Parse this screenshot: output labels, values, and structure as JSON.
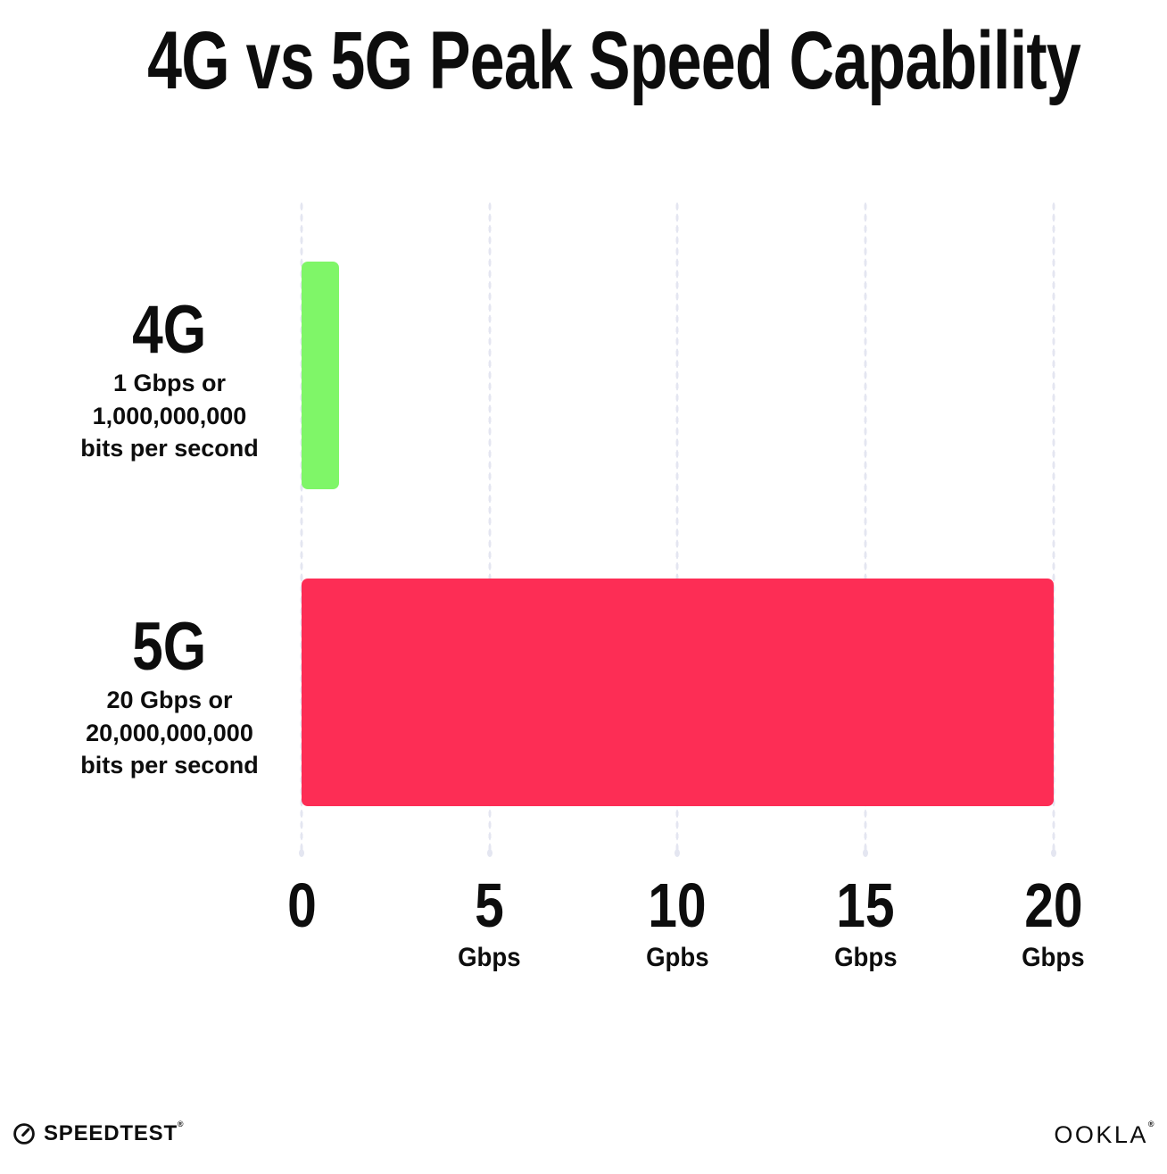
{
  "title": "4G vs 5G Peak Speed Capability",
  "colors": {
    "bar_4g": "#7FF668",
    "bar_5g": "#FD2D55",
    "grid_dots": "#E4E6F1",
    "text": "#0D0D0D",
    "background": "#FFFFFF"
  },
  "chart_data": {
    "type": "bar",
    "orientation": "horizontal",
    "title": "4G vs 5G Peak Speed Capability",
    "categories": [
      "4G",
      "5G"
    ],
    "values": [
      1,
      20
    ],
    "value_unit": "Gbps",
    "xlim": [
      0,
      20
    ],
    "grid": "vertical dotted gridlines at each tick",
    "legend_position": "none",
    "x_ticks": [
      {
        "value": 0,
        "label": "0",
        "unit": ""
      },
      {
        "value": 5,
        "label": "5",
        "unit": "Gbps"
      },
      {
        "value": 10,
        "label": "10",
        "unit": "Gpbs"
      },
      {
        "value": 15,
        "label": "15",
        "unit": "Gbps"
      },
      {
        "value": 20,
        "label": "20",
        "unit": "Gbps"
      }
    ],
    "rows": [
      {
        "label": "4G",
        "sublabel_lines": [
          "1 Gbps or",
          "1,000,000,000",
          "bits per second"
        ],
        "value": 1,
        "color": "#7FF668"
      },
      {
        "label": "5G",
        "sublabel_lines": [
          "20 Gbps or",
          "20,000,000,000",
          "bits per second"
        ],
        "value": 20,
        "color": "#FD2D55"
      }
    ]
  },
  "footer": {
    "speedtest_label": "SPEEDTEST",
    "speedtest_trademark": "®",
    "ookla_label": "OOKLA",
    "ookla_trademark": "®"
  }
}
